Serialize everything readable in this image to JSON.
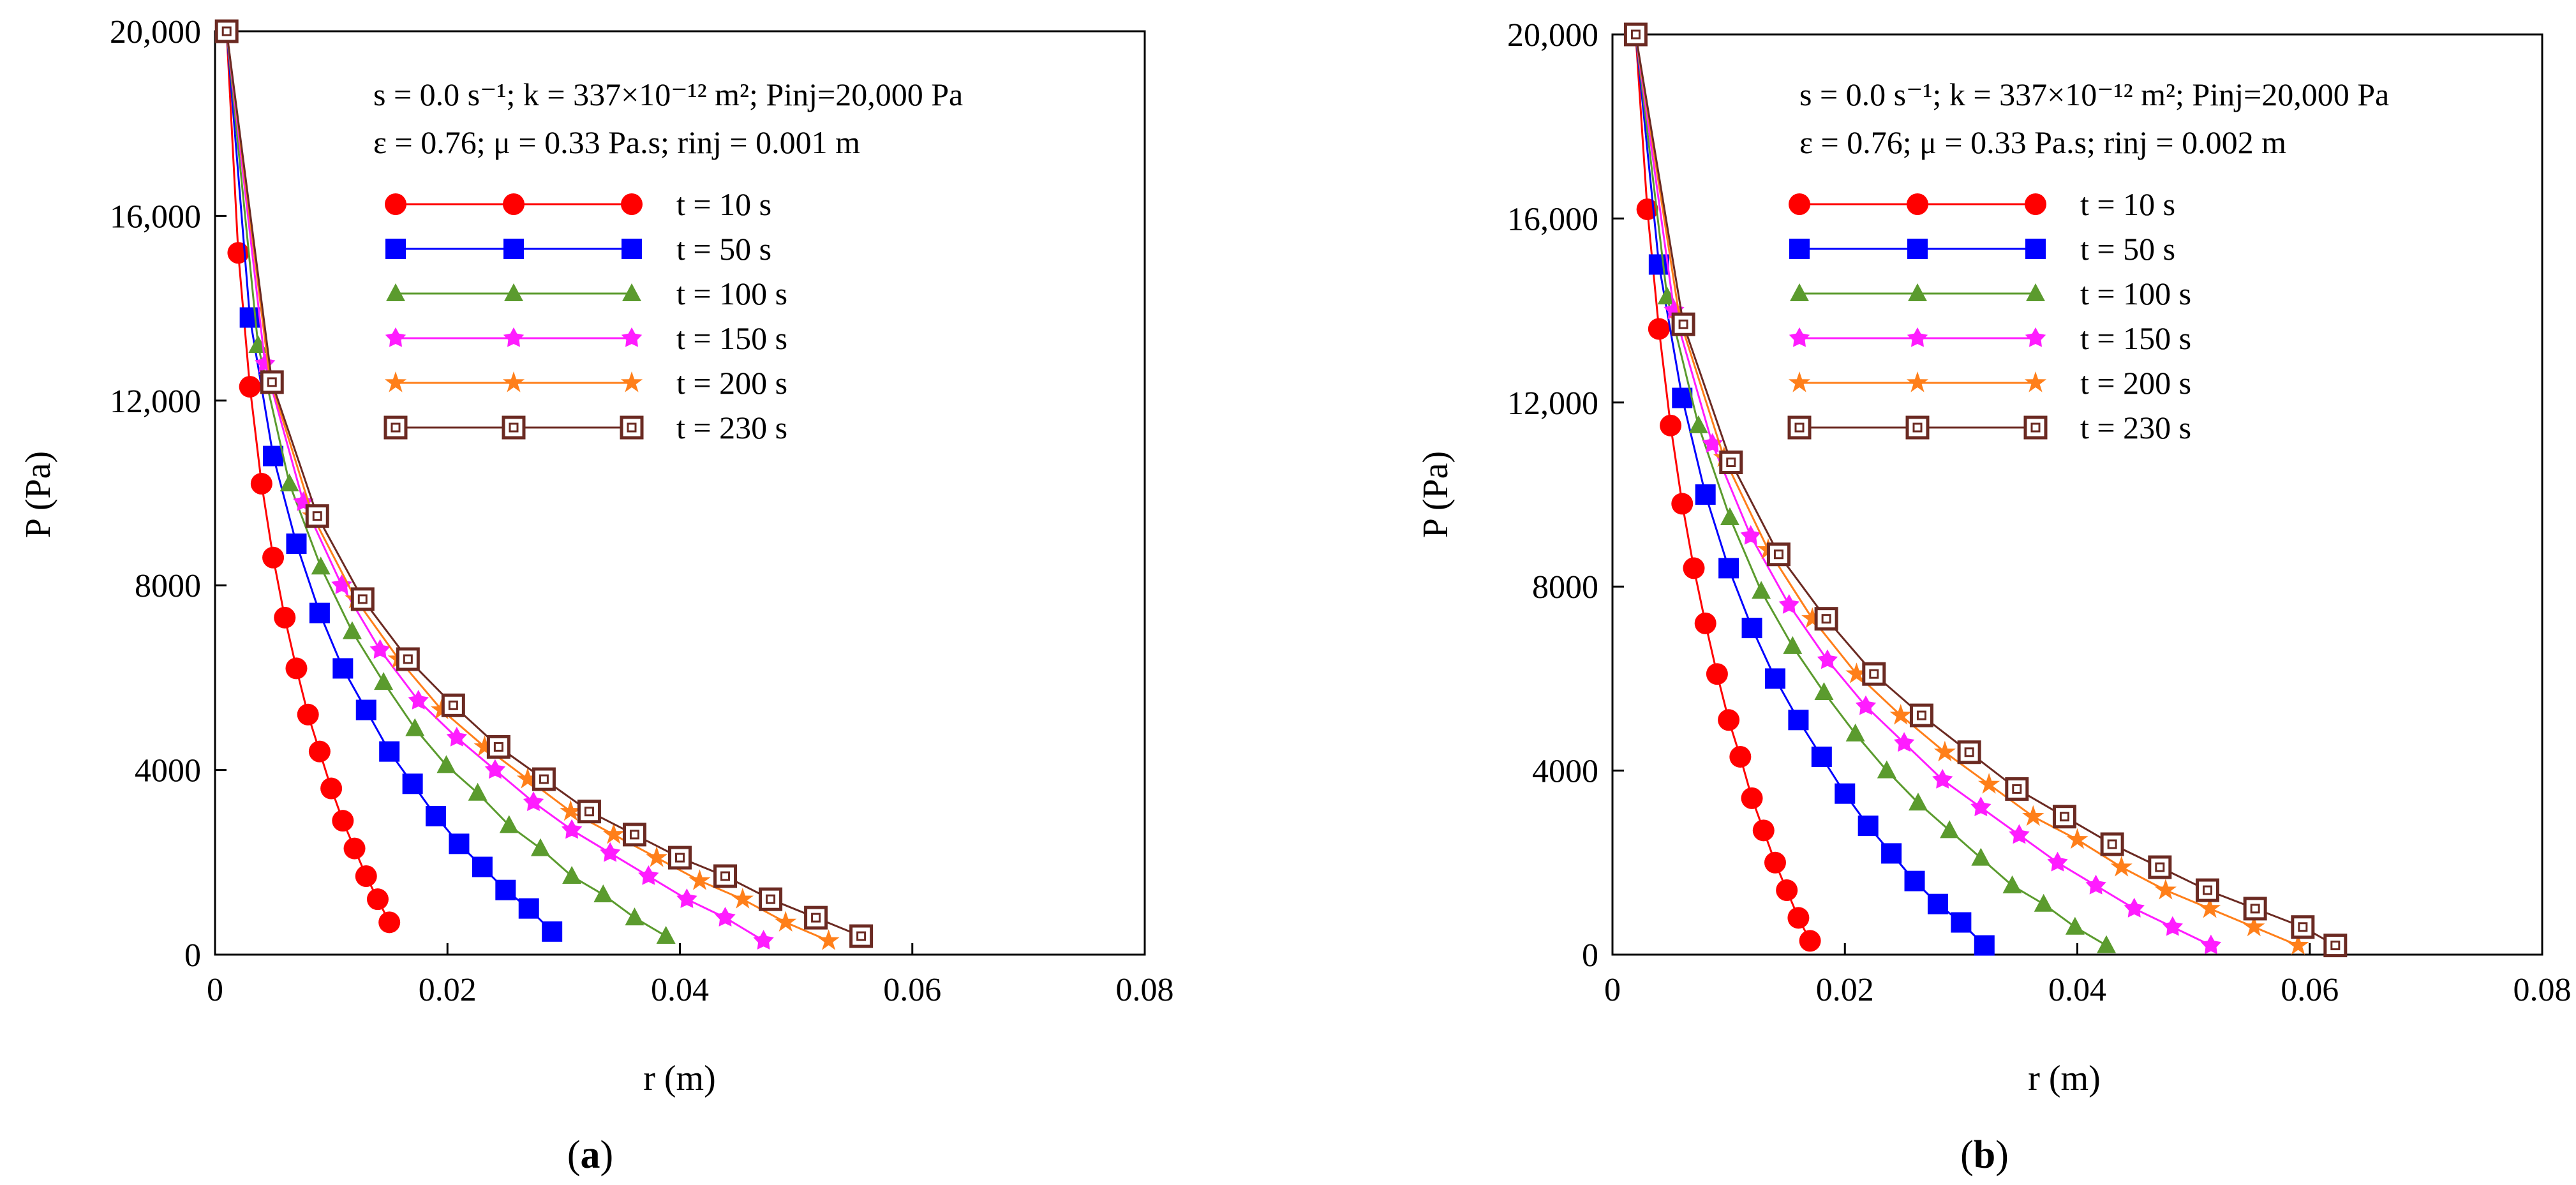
{
  "colors": {
    "t10": "#ff0000",
    "t50": "#0000ff",
    "t100": "#5b9b2e",
    "t150": "#ff1cff",
    "t200": "#ff7f1a",
    "t230": "#6b2a22"
  },
  "chart_data": [
    {
      "type": "line",
      "panel_label": "a",
      "xlabel": "r (m)",
      "ylabel": "P (Pa)",
      "xlim": [
        0,
        0.08
      ],
      "ylim": [
        0,
        20000
      ],
      "xticks": [
        0,
        0.02,
        0.04,
        0.06,
        0.08
      ],
      "xtick_labels": [
        "0",
        "0.02",
        "0.04",
        "0.06",
        "0.08"
      ],
      "yticks": [
        0,
        4000,
        8000,
        12000,
        16000,
        20000
      ],
      "ytick_labels": [
        "0",
        "4000",
        "8000",
        "12,000",
        "16,000",
        "20,000"
      ],
      "annotation_line1": "s = 0.0 s⁻¹; k = 337×10⁻¹² m²; Pinj=20,000 Pa",
      "annotation_line2": "ε = 0.76; μ = 0.33 Pa.s; rinj = 0.001 m",
      "legend_position": "top-right",
      "series": [
        {
          "name": "t = 10 s",
          "color_key": "t10",
          "marker": "circle",
          "x": [
            0.001,
            0.002,
            0.003,
            0.004,
            0.005,
            0.006,
            0.007,
            0.008,
            0.009,
            0.01,
            0.011,
            0.012,
            0.013,
            0.014,
            0.015
          ],
          "y": [
            20000,
            15200,
            12300,
            10200,
            8600,
            7300,
            6200,
            5200,
            4400,
            3600,
            2900,
            2300,
            1700,
            1200,
            700
          ]
        },
        {
          "name": "t = 50 s",
          "color_key": "t50",
          "marker": "square",
          "x": [
            0.001,
            0.003,
            0.005,
            0.007,
            0.009,
            0.011,
            0.013,
            0.015,
            0.017,
            0.019,
            0.021,
            0.023,
            0.025,
            0.027,
            0.029
          ],
          "y": [
            20000,
            13800,
            10800,
            8900,
            7400,
            6200,
            5300,
            4400,
            3700,
            3000,
            2400,
            1900,
            1400,
            1000,
            500
          ]
        },
        {
          "name": "t = 100 s",
          "color_key": "t100",
          "marker": "triangle",
          "x": [
            0.001,
            0.0037,
            0.0064,
            0.0091,
            0.0118,
            0.0145,
            0.0172,
            0.0199,
            0.0226,
            0.0253,
            0.028,
            0.0307,
            0.0334,
            0.0361,
            0.0388
          ],
          "y": [
            20000,
            13200,
            10200,
            8400,
            7000,
            5900,
            4900,
            4100,
            3500,
            2800,
            2300,
            1700,
            1300,
            800,
            400
          ]
        },
        {
          "name": "t = 150 s",
          "color_key": "t150",
          "marker": "asterisk",
          "x": [
            0.001,
            0.0043,
            0.0076,
            0.0109,
            0.0142,
            0.0175,
            0.0208,
            0.0241,
            0.0274,
            0.0307,
            0.034,
            0.0373,
            0.0406,
            0.0439,
            0.0472
          ],
          "y": [
            20000,
            12800,
            9800,
            8000,
            6600,
            5500,
            4700,
            4000,
            3300,
            2700,
            2200,
            1700,
            1200,
            800,
            300
          ]
        },
        {
          "name": "t = 200 s",
          "color_key": "t200",
          "marker": "star",
          "x": [
            0.001,
            0.0047,
            0.0084,
            0.0121,
            0.0158,
            0.0195,
            0.0232,
            0.0269,
            0.0306,
            0.0343,
            0.038,
            0.0417,
            0.0454,
            0.0491,
            0.0528
          ],
          "y": [
            20000,
            12500,
            9500,
            7700,
            6400,
            5300,
            4500,
            3800,
            3100,
            2600,
            2100,
            1600,
            1200,
            700,
            300
          ]
        },
        {
          "name": "t = 230 s",
          "color_key": "t230",
          "marker": "square-open",
          "x": [
            0.001,
            0.0049,
            0.0088,
            0.0127,
            0.0166,
            0.0205,
            0.0244,
            0.0283,
            0.0322,
            0.0361,
            0.04,
            0.0439,
            0.0478,
            0.0517,
            0.0556
          ],
          "y": [
            20000,
            12400,
            9500,
            7700,
            6400,
            5400,
            4500,
            3800,
            3100,
            2600,
            2100,
            1700,
            1200,
            800,
            400
          ]
        }
      ]
    },
    {
      "type": "line",
      "panel_label": "b",
      "xlabel": "r (m)",
      "ylabel": "P (Pa)",
      "xlim": [
        0,
        0.08
      ],
      "ylim": [
        0,
        20000
      ],
      "xticks": [
        0,
        0.02,
        0.04,
        0.06,
        0.08
      ],
      "xtick_labels": [
        "0",
        "0.02",
        "0.04",
        "0.06",
        "0.08"
      ],
      "yticks": [
        0,
        4000,
        8000,
        12000,
        16000,
        20000
      ],
      "ytick_labels": [
        "0",
        "4000",
        "8000",
        "12,000",
        "16,000",
        "20,000"
      ],
      "annotation_line1": "s = 0.0 s⁻¹; k = 337×10⁻¹² m²; Pinj=20,000 Pa",
      "annotation_line2": "ε = 0.76; μ = 0.33 Pa.s; rinj = 0.002 m",
      "legend_position": "top-right",
      "series": [
        {
          "name": "t = 10 s",
          "color_key": "t10",
          "marker": "circle",
          "x": [
            0.002,
            0.003,
            0.004,
            0.005,
            0.006,
            0.007,
            0.008,
            0.009,
            0.01,
            0.011,
            0.012,
            0.013,
            0.014,
            0.015,
            0.016,
            0.017
          ],
          "y": [
            20000,
            16200,
            13600,
            11500,
            9800,
            8400,
            7200,
            6100,
            5100,
            4300,
            3400,
            2700,
            2000,
            1400,
            800,
            300
          ]
        },
        {
          "name": "t = 50 s",
          "color_key": "t50",
          "marker": "square",
          "x": [
            0.002,
            0.004,
            0.006,
            0.008,
            0.01,
            0.012,
            0.014,
            0.016,
            0.018,
            0.02,
            0.022,
            0.024,
            0.026,
            0.028,
            0.03,
            0.032
          ],
          "y": [
            20000,
            15000,
            12100,
            10000,
            8400,
            7100,
            6000,
            5100,
            4300,
            3500,
            2800,
            2200,
            1600,
            1100,
            700,
            200
          ]
        },
        {
          "name": "t = 100 s",
          "color_key": "t100",
          "marker": "triangle",
          "x": [
            0.002,
            0.0047,
            0.0074,
            0.0101,
            0.0128,
            0.0155,
            0.0182,
            0.0209,
            0.0236,
            0.0263,
            0.029,
            0.0317,
            0.0344,
            0.0371,
            0.0398,
            0.0425
          ],
          "y": [
            20000,
            14300,
            11500,
            9500,
            7900,
            6700,
            5700,
            4800,
            4000,
            3300,
            2700,
            2100,
            1500,
            1100,
            600,
            200
          ]
        },
        {
          "name": "t = 150 s",
          "color_key": "t150",
          "marker": "asterisk",
          "x": [
            0.002,
            0.0053,
            0.0086,
            0.0119,
            0.0152,
            0.0185,
            0.0218,
            0.0251,
            0.0284,
            0.0317,
            0.035,
            0.0383,
            0.0416,
            0.0449,
            0.0482,
            0.0515
          ],
          "y": [
            20000,
            14000,
            11100,
            9100,
            7600,
            6400,
            5400,
            4600,
            3800,
            3200,
            2600,
            2000,
            1500,
            1000,
            600,
            200
          ]
        },
        {
          "name": "t = 200 s",
          "color_key": "t200",
          "marker": "star",
          "x": [
            0.002,
            0.0058,
            0.0096,
            0.0134,
            0.0172,
            0.021,
            0.0248,
            0.0286,
            0.0324,
            0.0362,
            0.04,
            0.0438,
            0.0476,
            0.0514,
            0.0552,
            0.059
          ],
          "y": [
            20000,
            13800,
            10800,
            8800,
            7300,
            6100,
            5200,
            4400,
            3700,
            3000,
            2500,
            1900,
            1400,
            1000,
            600,
            200
          ]
        },
        {
          "name": "t = 230 s",
          "color_key": "t230",
          "marker": "square-open",
          "x": [
            0.002,
            0.0061,
            0.0102,
            0.0143,
            0.0184,
            0.0225,
            0.0266,
            0.0307,
            0.0348,
            0.0389,
            0.043,
            0.0471,
            0.0512,
            0.0553,
            0.0594,
            0.0622
          ],
          "y": [
            20000,
            13700,
            10700,
            8700,
            7300,
            6100,
            5200,
            4400,
            3600,
            3000,
            2400,
            1900,
            1400,
            1000,
            600,
            200
          ]
        }
      ]
    }
  ]
}
